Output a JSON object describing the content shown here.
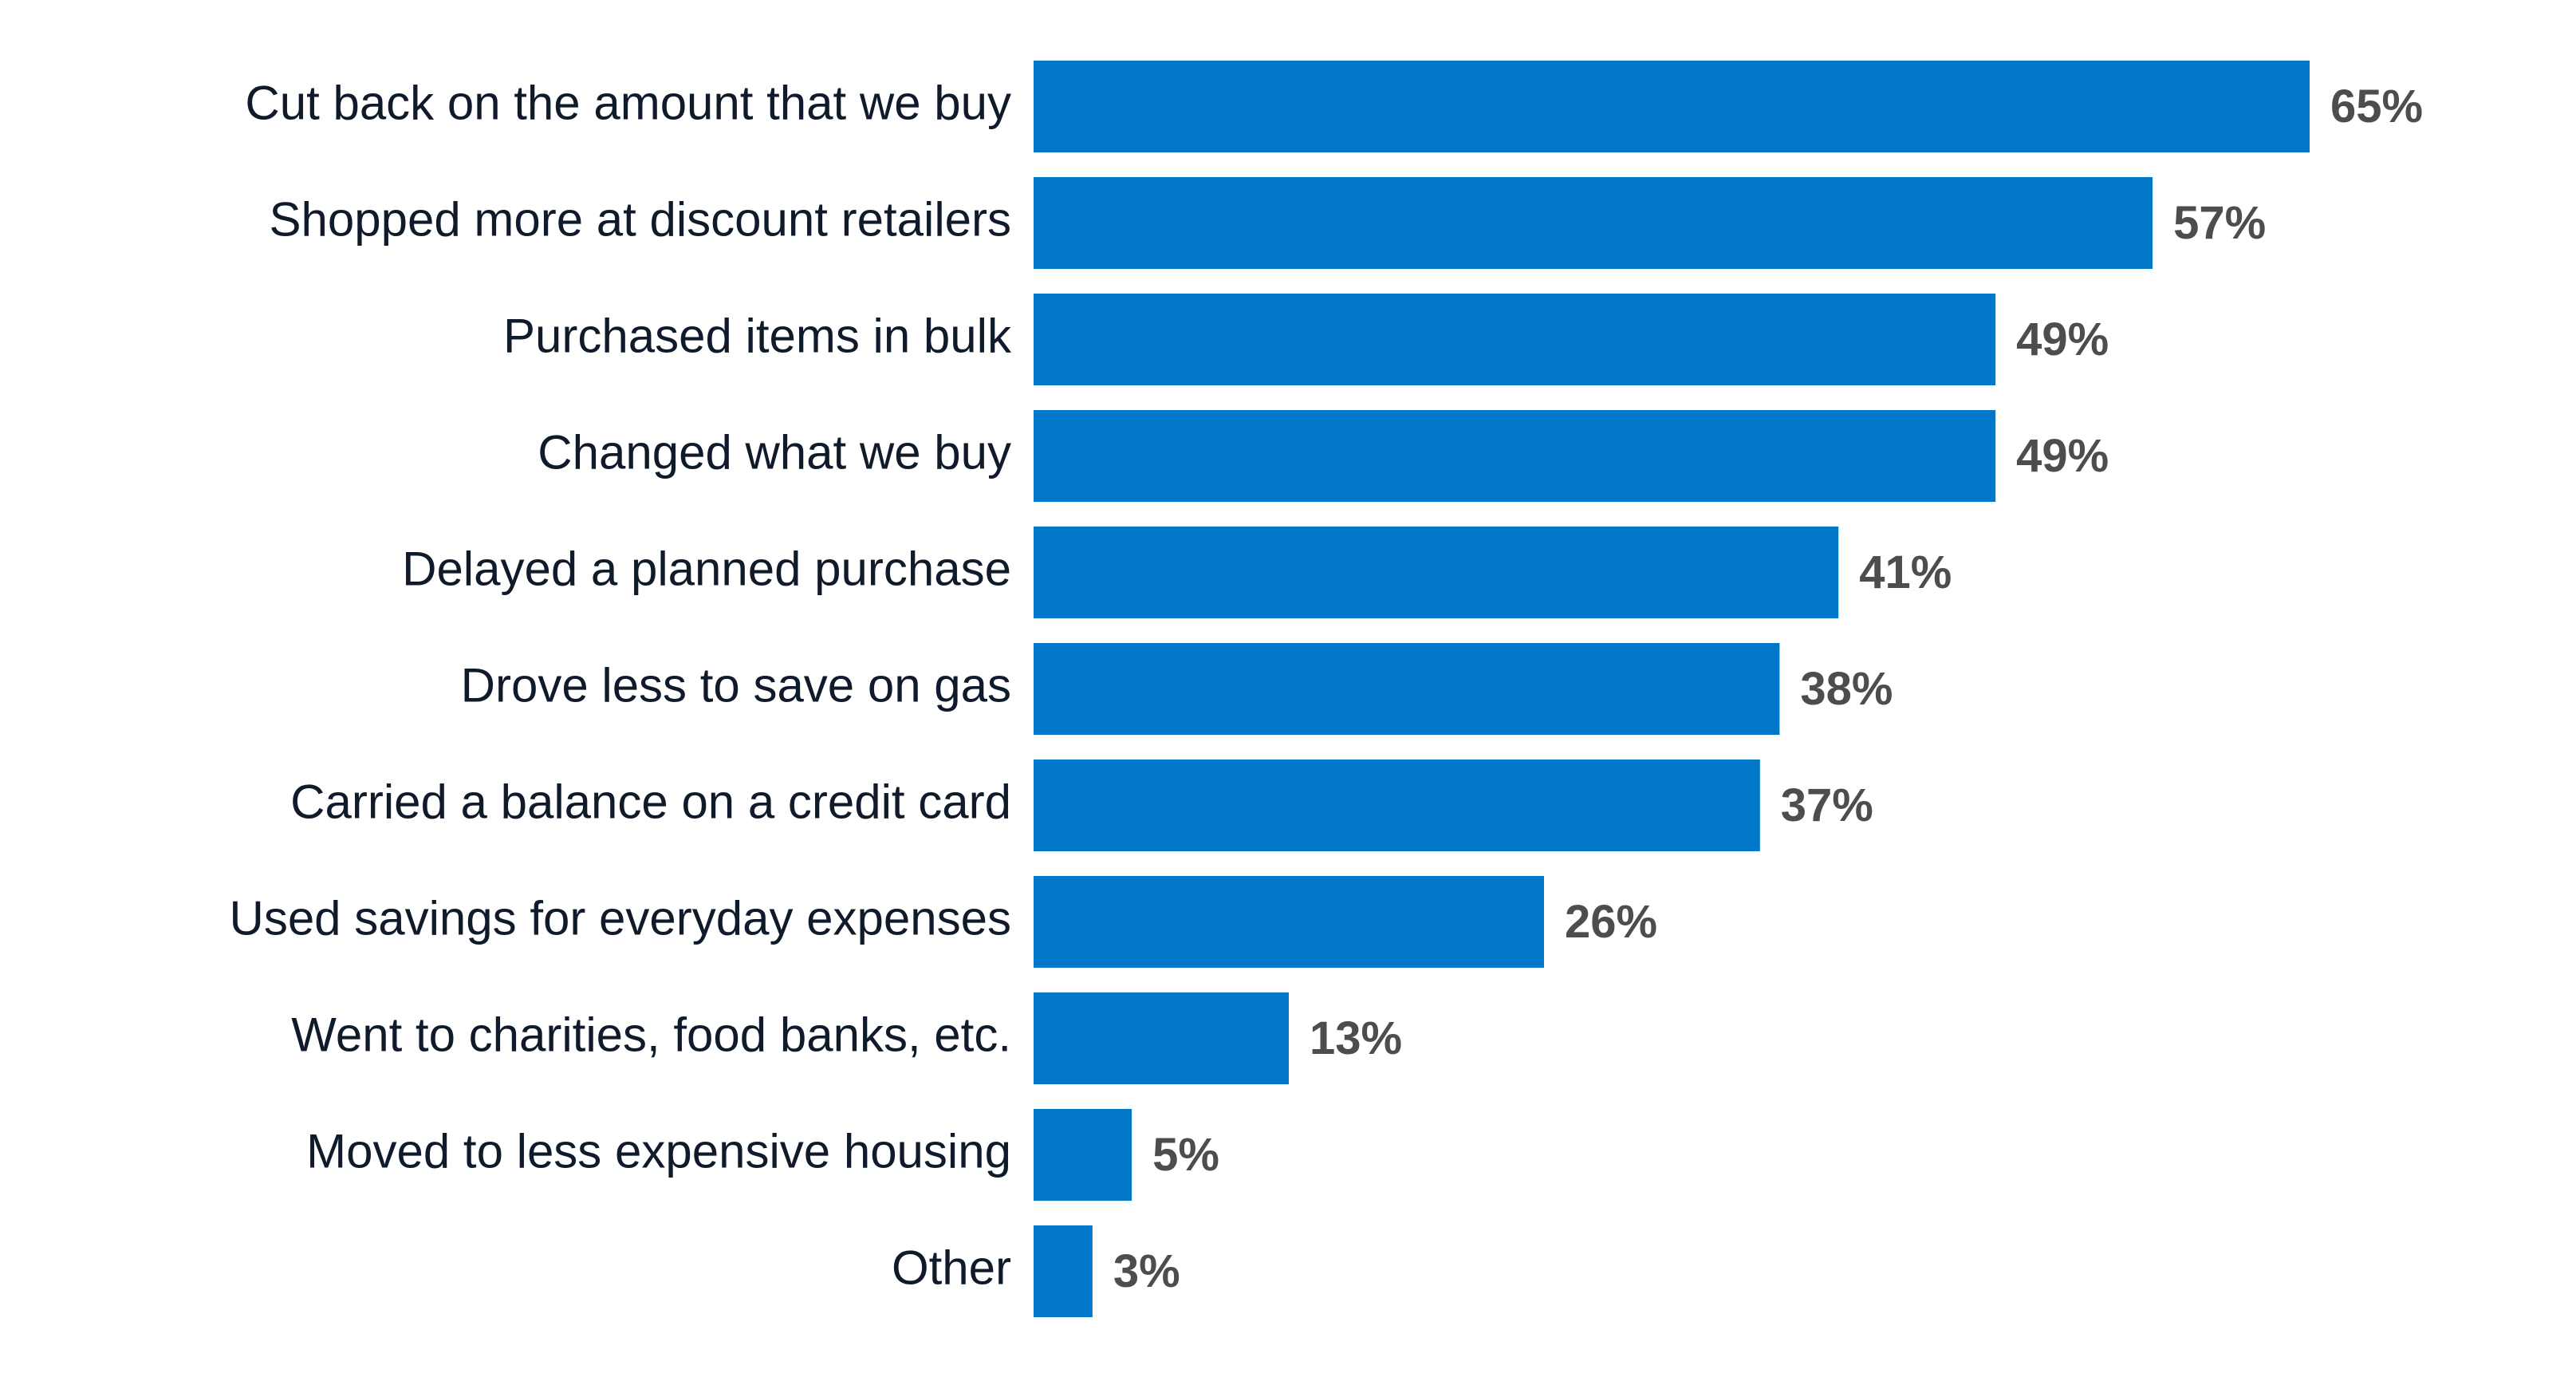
{
  "chart_data": {
    "type": "bar",
    "orientation": "horizontal",
    "categories": [
      "Cut back on the amount that we buy",
      "Shopped more at discount retailers",
      "Purchased items in bulk",
      "Changed what we buy",
      "Delayed a planned purchase",
      "Drove less to save on gas",
      "Carried a balance on a credit card",
      "Used savings for everyday expenses",
      "Went to charities, food banks, etc.",
      "Moved to less expensive housing",
      "Other"
    ],
    "values": [
      65,
      57,
      49,
      49,
      41,
      38,
      37,
      26,
      13,
      5,
      3
    ],
    "value_labels": [
      "65%",
      "57%",
      "49%",
      "49%",
      "41%",
      "38%",
      "37%",
      "26%",
      "13%",
      "5%",
      "3%"
    ],
    "title": "",
    "xlabel": "",
    "ylabel": "",
    "xlim": [
      0,
      65
    ],
    "grid": false,
    "legend": "none",
    "bar_color": "#0077c8"
  }
}
